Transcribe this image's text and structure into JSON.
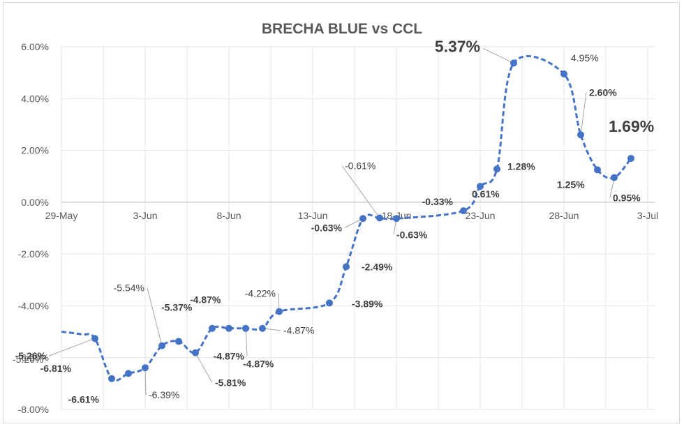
{
  "chart_data": {
    "type": "line",
    "title": "BRECHA BLUE vs CCL",
    "xlabel": "",
    "ylabel": "",
    "ylim": [
      -0.08,
      0.06
    ],
    "yticks": [
      "6.00%",
      "4.00%",
      "2.00%",
      "0.00%",
      "-2.00%",
      "-4.00%",
      "-6.00%",
      "-8.00%"
    ],
    "ytick_values": [
      0.06,
      0.04,
      0.02,
      0.0,
      -0.02,
      -0.04,
      -0.06,
      -0.08
    ],
    "xticks": [
      "29-May",
      "3-Jun",
      "8-Jun",
      "13-Jun",
      "18-Jun",
      "23-Jun",
      "28-Jun",
      "3-Jul"
    ],
    "xtick_days": [
      0,
      5,
      10,
      15,
      20,
      25,
      30,
      35
    ],
    "grid": true,
    "legend": "none",
    "color": "#4472c4",
    "series": [
      {
        "points": [
          {
            "x": "2-Jun",
            "d": 2,
            "y": -0.0526,
            "label": "-5.26%",
            "bold": true
          },
          {
            "x": "3-Jun",
            "d": 3,
            "y": -0.0681,
            "label": "-6.81%",
            "bold": true
          },
          {
            "x": "4-Jun",
            "d": 4,
            "y": -0.0661,
            "label": "-6.61%",
            "bold": true
          },
          {
            "x": "5-Jun",
            "d": 5,
            "y": -0.0639,
            "label": "-6.39%",
            "bold": false
          },
          {
            "x": "6-Jun",
            "d": 6,
            "y": -0.0554,
            "label": "-5.54%",
            "bold": false
          },
          {
            "x": "7-Jun",
            "d": 7,
            "y": -0.0537,
            "label": "-5.37%",
            "bold": true
          },
          {
            "x": "8-Jun",
            "d": 8,
            "y": -0.0581,
            "label": "-5.81%",
            "bold": true
          },
          {
            "x": "9-Jun",
            "d": 9,
            "y": -0.0487,
            "label": "-4.87%",
            "bold": true
          },
          {
            "x": "10-Jun",
            "d": 10,
            "y": -0.0487,
            "label": "-4.87%",
            "bold": true
          },
          {
            "x": "11-Jun",
            "d": 11,
            "y": -0.0487,
            "label": "-4.87%",
            "bold": true
          },
          {
            "x": "12-Jun",
            "d": 12,
            "y": -0.0487,
            "label": "-4.87%",
            "bold": false
          },
          {
            "x": "13-Jun",
            "d": 13,
            "y": -0.0422,
            "label": "-4.22%",
            "bold": false
          },
          {
            "x": "16-Jun",
            "d": 16,
            "y": -0.0389,
            "label": "-3.89%",
            "bold": true
          },
          {
            "x": "17-Jun",
            "d": 17,
            "y": -0.0249,
            "label": "-2.49%",
            "bold": true
          },
          {
            "x": "18-Jun",
            "d": 18,
            "y": -0.0063,
            "label": "-0.63%",
            "bold": true
          },
          {
            "x": "19-Jun",
            "d": 19,
            "y": -0.0061,
            "label": "-0.61%",
            "bold": false
          },
          {
            "x": "20-Jun",
            "d": 20,
            "y": -0.0063,
            "label": "-0.63%",
            "bold": true
          },
          {
            "x": "24-Jun",
            "d": 24,
            "y": -0.0033,
            "label": "-0.33%",
            "bold": true
          },
          {
            "x": "25-Jun",
            "d": 25,
            "y": 0.0061,
            "label": "0.61%",
            "bold": true
          },
          {
            "x": "26-Jun",
            "d": 26,
            "y": 0.0128,
            "label": "1.28%",
            "bold": true
          },
          {
            "x": "27-Jun",
            "d": 27,
            "y": 0.0537,
            "label": "5.37%",
            "bold": true,
            "big": true
          },
          {
            "x": "30-Jun",
            "d": 30,
            "y": 0.0495,
            "label": "4.95%",
            "bold": false
          },
          {
            "x": "1-Jul",
            "d": 31,
            "y": 0.026,
            "label": "2.60%",
            "bold": true
          },
          {
            "x": "2-Jul",
            "d": 32,
            "y": 0.0125,
            "label": "1.25%",
            "bold": true
          },
          {
            "x": "3-Jul",
            "d": 33,
            "y": 0.0095,
            "label": "0.95%",
            "bold": true
          },
          {
            "x": "4-Jul",
            "d": 34,
            "y": 0.0169,
            "label": "1.69%",
            "bold": true,
            "big": true
          }
        ]
      }
    ],
    "extra_labels": [
      {
        "text": "-5.26%",
        "bold": false
      }
    ]
  }
}
